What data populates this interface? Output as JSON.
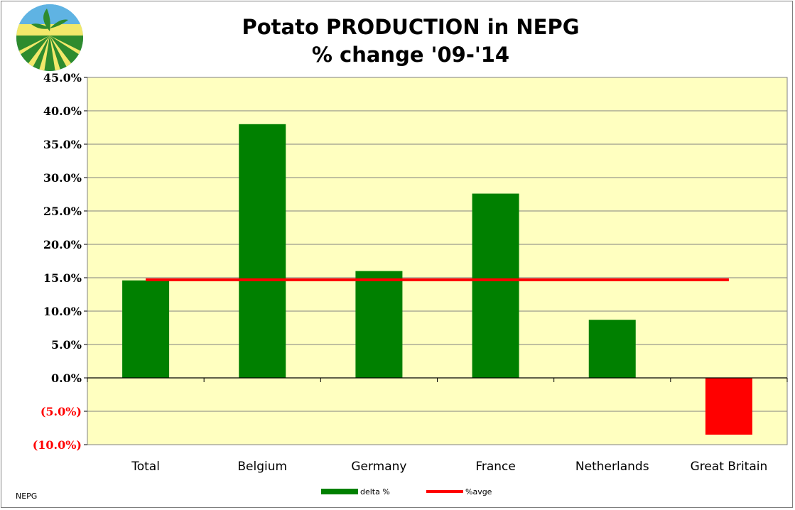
{
  "chart_data": {
    "type": "bar",
    "title_lines": [
      "Potato PRODUCTION in NEPG",
      "% change '09-'14"
    ],
    "categories": [
      "Total",
      "Belgium",
      "Germany",
      "France",
      "Netherlands",
      "Great Britain"
    ],
    "series": [
      {
        "name": "delta %",
        "type": "bar",
        "values": [
          14.6,
          38.0,
          16.0,
          27.6,
          8.7,
          -8.5
        ]
      },
      {
        "name": "%avge",
        "type": "line",
        "values": [
          14.7,
          14.7,
          14.7,
          14.7,
          14.7,
          14.7
        ]
      }
    ],
    "ylim": [
      -10,
      45
    ],
    "yticks": [
      45,
      40,
      35,
      30,
      25,
      20,
      15,
      10,
      5,
      0,
      -5,
      -10
    ],
    "ytick_labels": [
      "45.0%",
      "40.0%",
      "35.0%",
      "30.0%",
      "25.0%",
      "20.0%",
      "15.0%",
      "10.0%",
      "5.0%",
      "0.0%",
      "(5.0%)",
      "(10.0%)"
    ],
    "grid": true,
    "legend_position": "bottom",
    "source_label": "NEPG",
    "colors": {
      "positive_bar": "#008000",
      "negative_bar": "#ff0000",
      "average_line": "#ff0000",
      "plot_background": "#ffffc0",
      "negative_tick_label": "#ff0000",
      "positive_tick_label": "#000000"
    }
  },
  "logo": {
    "name": "nepg-logo"
  }
}
